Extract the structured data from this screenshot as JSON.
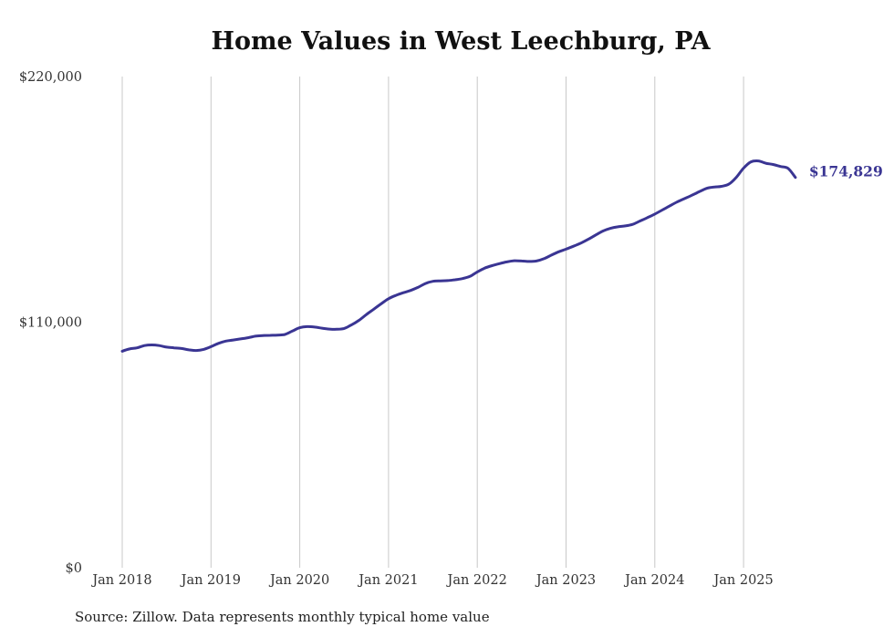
{
  "chart_data": {
    "type": "line",
    "title": "Home Values in West Leechburg, PA",
    "source": "Source: Zillow. Data represents monthly typical home value",
    "y_ticks": [
      "$220,000",
      "$110,000",
      "$0"
    ],
    "x_ticks": [
      "Jan 2018",
      "Jan 2019",
      "Jan 2020",
      "Jan 2021",
      "Jan 2022",
      "Jan 2023",
      "Jan 2024",
      "Jan 2025"
    ],
    "ylim": [
      0,
      220000
    ],
    "grid": "vertical",
    "end_label": "$174,829",
    "colors": {
      "line": "#3a3593",
      "grid": "#c8c8c8",
      "text": "#333333"
    },
    "series": [
      {
        "x": [
          "2018-01",
          "2018-02",
          "2018-03",
          "2018-04",
          "2018-05",
          "2018-06",
          "2018-07",
          "2018-08",
          "2018-09",
          "2018-10",
          "2018-11",
          "2018-12",
          "2019-01",
          "2019-02",
          "2019-03",
          "2019-04",
          "2019-05",
          "2019-06",
          "2019-07",
          "2019-08",
          "2019-09",
          "2019-10",
          "2019-11",
          "2019-12",
          "2020-01",
          "2020-02",
          "2020-03",
          "2020-04",
          "2020-05",
          "2020-06",
          "2020-07",
          "2020-08",
          "2020-09",
          "2020-10",
          "2020-11",
          "2020-12",
          "2021-01",
          "2021-02",
          "2021-03",
          "2021-04",
          "2021-05",
          "2021-06",
          "2021-07",
          "2021-08",
          "2021-09",
          "2021-10",
          "2021-11",
          "2021-12",
          "2022-01",
          "2022-02",
          "2022-03",
          "2022-04",
          "2022-05",
          "2022-06",
          "2022-07",
          "2022-08",
          "2022-09",
          "2022-10",
          "2022-11",
          "2022-12",
          "2023-01",
          "2023-02",
          "2023-03",
          "2023-04",
          "2023-05",
          "2023-06",
          "2023-07",
          "2023-08",
          "2023-09",
          "2023-10",
          "2023-11",
          "2023-12",
          "2024-01",
          "2024-02",
          "2024-03",
          "2024-04",
          "2024-05",
          "2024-06",
          "2024-07",
          "2024-08",
          "2024-09",
          "2024-10",
          "2024-11",
          "2024-12",
          "2025-01",
          "2025-02",
          "2025-03",
          "2025-04",
          "2025-05",
          "2025-06",
          "2025-07",
          "2025-08"
        ],
        "values": [
          97000,
          98000,
          98500,
          99500,
          99800,
          99500,
          98800,
          98500,
          98200,
          97600,
          97300,
          97800,
          99000,
          100500,
          101500,
          102000,
          102500,
          103000,
          103700,
          104000,
          104100,
          104200,
          104500,
          106000,
          107500,
          108000,
          107800,
          107300,
          106900,
          106800,
          107200,
          108800,
          110800,
          113400,
          115800,
          118200,
          120500,
          122000,
          123200,
          124200,
          125600,
          127300,
          128300,
          128500,
          128600,
          129000,
          129500,
          130500,
          132500,
          134200,
          135300,
          136200,
          137000,
          137500,
          137400,
          137200,
          137400,
          138400,
          140000,
          141500,
          142700,
          144000,
          145400,
          147100,
          149000,
          150800,
          152000,
          152700,
          153100,
          153800,
          155300,
          156800,
          158400,
          160200,
          162000,
          163800,
          165300,
          166800,
          168400,
          169900,
          170500,
          170800,
          171800,
          174800,
          179000,
          181800,
          182200,
          181200,
          180600,
          179700,
          178900,
          174829
        ]
      }
    ]
  }
}
